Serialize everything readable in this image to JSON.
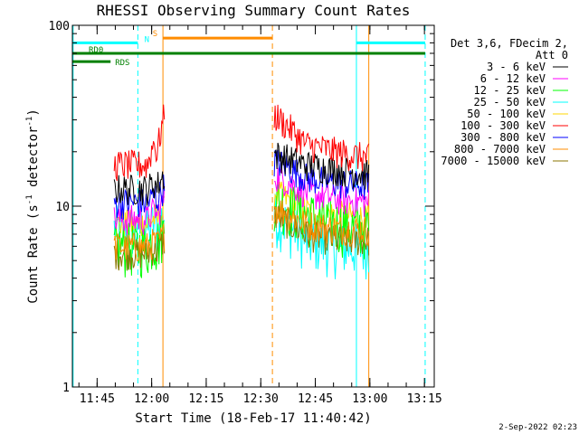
{
  "chart_data": {
    "type": "line",
    "title": "RHESSI Observing Summary Count Rates",
    "xlabel": "Start Time (18-Feb-17 11:40:42)",
    "ylabel_parts": [
      "Count Rate (s",
      "-1",
      " detector",
      "-1",
      ")"
    ],
    "yscale": "log",
    "ylim": [
      1,
      100
    ],
    "y_ticks": [
      {
        "value": 1,
        "label": "1"
      },
      {
        "value": 10,
        "label": "10"
      },
      {
        "value": 100,
        "label": "100"
      }
    ],
    "xlim_min": [
      -2.5,
      97
    ],
    "x_ticks": [
      {
        "value": 4.3,
        "label": "11:45"
      },
      {
        "value": 19.3,
        "label": "12:00"
      },
      {
        "value": 34.3,
        "label": "12:15"
      },
      {
        "value": 49.3,
        "label": "12:30"
      },
      {
        "value": 64.3,
        "label": "12:45"
      },
      {
        "value": 79.3,
        "label": "13:00"
      },
      {
        "value": 94.3,
        "label": "13:15"
      }
    ],
    "legend": {
      "position": "right",
      "header": [
        "Det 3,6, FDecim 2,",
        "Att 0"
      ],
      "entries": [
        {
          "label": "3 - 6 keV",
          "color": "#000000"
        },
        {
          "label": "6 - 12 keV",
          "color": "#ff00ff"
        },
        {
          "label": "12 - 25 keV",
          "color": "#00ff00"
        },
        {
          "label": "25 - 50 keV",
          "color": "#00ffff"
        },
        {
          "label": "50 - 100 keV",
          "color": "#ffd700"
        },
        {
          "label": "100 - 300 keV",
          "color": "#ff0000"
        },
        {
          "label": "300 - 800 keV",
          "color": "#0000ff"
        },
        {
          "label": "800 - 7000 keV",
          "color": "#ff8c00"
        },
        {
          "label": "7000 - 15000 keV",
          "color": "#8b7500"
        }
      ]
    },
    "flags": [
      {
        "label": "N",
        "color": "#00ffff",
        "y": 80,
        "segments": [
          [
            -2.5,
            15.5
          ],
          [
            75.5,
            94.5
          ]
        ]
      },
      {
        "label": "S",
        "color": "#ff8c00",
        "y": 85,
        "segments": [
          [
            22.5,
            52.5
          ]
        ]
      },
      {
        "label": "RD0",
        "color": "#008000",
        "y": 70,
        "segments": [
          [
            -2.5,
            94.5
          ]
        ]
      },
      {
        "label": "RDS",
        "color": "#008000",
        "y": 63,
        "segments": [
          [
            -2.5,
            8
          ]
        ]
      }
    ],
    "vlines": [
      {
        "x": -2.3,
        "color": "#00ffff",
        "style": "solid"
      },
      {
        "x": 15.5,
        "color": "#00ffff",
        "style": "dashed"
      },
      {
        "x": 22.4,
        "color": "#ff8c00",
        "style": "solid"
      },
      {
        "x": 52.5,
        "color": "#ff8c00",
        "style": "dashed"
      },
      {
        "x": 75.6,
        "color": "#00ffff",
        "style": "solid"
      },
      {
        "x": 79.0,
        "color": "#ff8c00",
        "style": "solid"
      },
      {
        "x": 94.5,
        "color": "#00ffff",
        "style": "dashed"
      }
    ],
    "data_intervals": [
      [
        9.0,
        22.8
      ],
      [
        53.0,
        79.0
      ]
    ],
    "series": [
      {
        "name": "3 - 6 keV",
        "color": "#000000",
        "seg1": [
          12.5,
          12.5,
          12.5,
          15.0
        ],
        "seg2": [
          19.5,
          17.0,
          16.0,
          15.0
        ]
      },
      {
        "name": "6 - 12 keV",
        "color": "#ff00ff",
        "seg1": [
          8.5,
          8.5,
          8.5,
          11.0
        ],
        "seg2": [
          15.0,
          12.0,
          11.0,
          10.5
        ]
      },
      {
        "name": "12 - 25 keV",
        "color": "#00ff00",
        "seg1": [
          6.0,
          6.0,
          6.0,
          7.5
        ],
        "seg2": [
          11.0,
          9.0,
          8.0,
          7.5
        ]
      },
      {
        "name": "25 - 50 keV",
        "color": "#00ffff",
        "seg1": [
          7.5,
          7.5,
          7.5,
          9.0
        ],
        "seg2": [
          9.0,
          6.5,
          6.0,
          6.0
        ]
      },
      {
        "name": "50 - 100 keV",
        "color": "#ffd700",
        "seg1": [
          8.0,
          8.0,
          8.0,
          9.5
        ],
        "seg2": [
          12.0,
          9.5,
          9.0,
          8.5
        ]
      },
      {
        "name": "100 - 300 keV",
        "color": "#ff0000",
        "seg1": [
          17.0,
          17.0,
          17.0,
          32.0
        ],
        "seg2": [
          32.0,
          22.0,
          20.0,
          18.5
        ]
      },
      {
        "name": "300 - 800 keV",
        "color": "#0000ff",
        "seg1": [
          10.5,
          10.5,
          10.5,
          13.0
        ],
        "seg2": [
          18.0,
          14.5,
          13.5,
          13.0
        ]
      },
      {
        "name": "800 - 7000 keV",
        "color": "#ff8c00",
        "seg1": [
          6.0,
          6.0,
          6.0,
          7.0
        ],
        "seg2": [
          10.0,
          8.0,
          7.5,
          7.5
        ]
      },
      {
        "name": "7000 - 15000 keV",
        "color": "#8b7500",
        "seg1": [
          5.5,
          5.5,
          5.5,
          6.5
        ],
        "seg2": [
          9.0,
          7.0,
          6.5,
          6.5
        ]
      }
    ]
  },
  "timestamp": "2-Sep-2022 02:23"
}
